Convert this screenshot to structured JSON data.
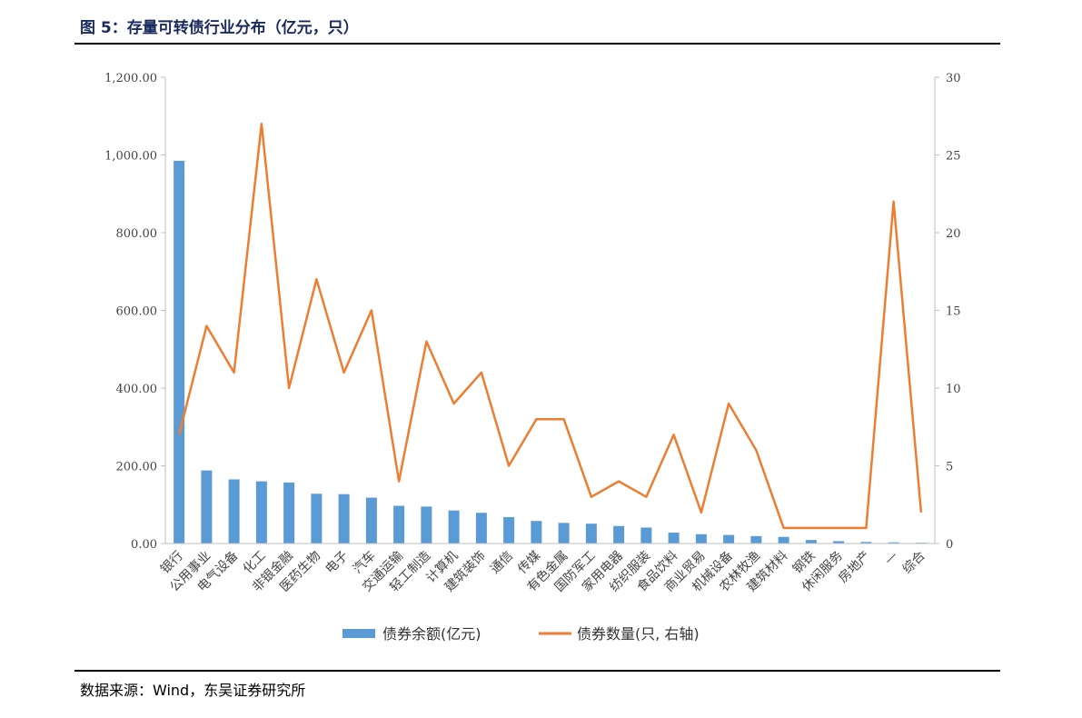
{
  "header": {
    "title": "图 5：存量可转债行业分布（亿元，只）"
  },
  "footer": {
    "source": "数据来源：Wind，东吴证券研究所"
  },
  "chart_data": {
    "type": "bar",
    "categories": [
      "银行",
      "公用事业",
      "电气设备",
      "化工",
      "非银金融",
      "医药生物",
      "电子",
      "汽车",
      "交通运输",
      "轻工制造",
      "计算机",
      "建筑装饰",
      "通信",
      "传媒",
      "有色金属",
      "国防军工",
      "家用电器",
      "纺织服装",
      "食品饮料",
      "商业贸易",
      "机械设备",
      "农林牧渔",
      "建筑材料",
      "钢铁",
      "休闲服务",
      "房地产",
      "—",
      "综合"
    ],
    "series": [
      {
        "name": "债券余额(亿元)",
        "type": "bar",
        "axis": "left",
        "color": "#5b9bd5",
        "values": [
          985,
          188,
          165,
          160,
          157,
          128,
          127,
          118,
          97,
          95,
          85,
          79,
          68,
          58,
          53,
          51,
          45,
          41,
          28,
          24,
          22,
          19,
          17,
          9,
          6,
          4,
          3,
          2
        ]
      },
      {
        "name": "债券数量(只, 右轴)",
        "type": "line",
        "axis": "right",
        "color": "#ed7d31",
        "values": [
          7,
          14,
          11,
          27,
          10,
          17,
          11,
          15,
          4,
          13,
          9,
          11,
          5,
          8,
          8,
          3,
          4,
          3,
          7,
          2,
          9,
          6,
          1,
          1,
          1,
          1,
          22,
          2
        ]
      }
    ],
    "y_left": {
      "min": 0,
      "max": 1200,
      "step": 200,
      "tick_labels": [
        "0.00",
        "200.00",
        "400.00",
        "600.00",
        "800.00",
        "1,000.00",
        "1,200.00"
      ]
    },
    "y_right": {
      "min": 0,
      "max": 30,
      "step": 5,
      "tick_labels": [
        "0",
        "5",
        "10",
        "15",
        "20",
        "25",
        "30"
      ]
    },
    "grid": false,
    "legend": "bottom-center"
  }
}
